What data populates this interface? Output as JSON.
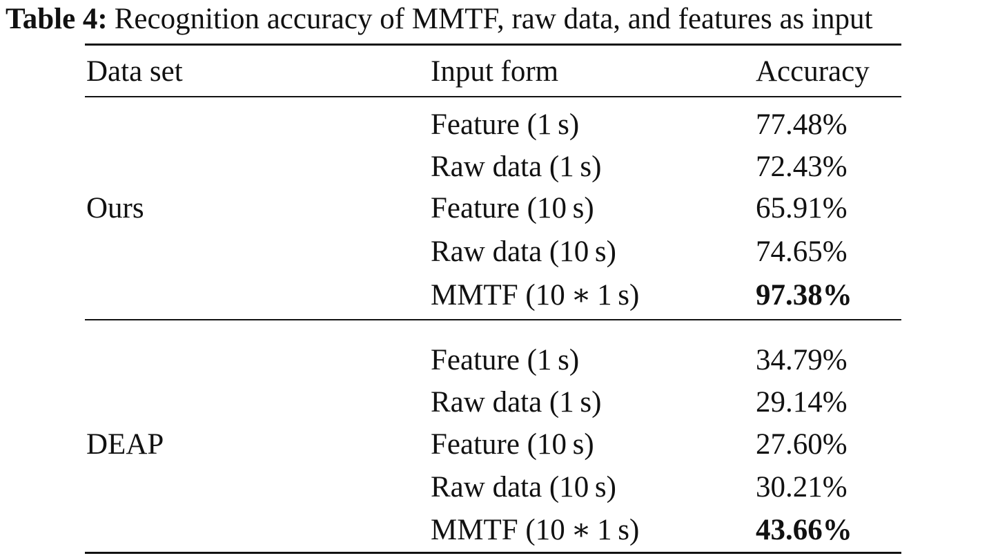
{
  "caption": {
    "label": "Table 4:",
    "text": "Recognition accuracy of MMTF, raw data, and features as input"
  },
  "header": {
    "dataset": "Data set",
    "input": "Input form",
    "accuracy": "Accuracy"
  },
  "groups": [
    {
      "dataset": "Ours",
      "rows": [
        {
          "input": "Feature (1 s)",
          "accuracy": "77.48%",
          "bold": false
        },
        {
          "input": "Raw data (1 s)",
          "accuracy": "72.43%",
          "bold": false
        },
        {
          "input": "Feature (10 s)",
          "accuracy": "65.91%",
          "bold": false
        },
        {
          "input": "Raw data (10 s)",
          "accuracy": "74.65%",
          "bold": false
        },
        {
          "input": "MMTF (10 ∗ 1 s)",
          "accuracy": "97.38%",
          "bold": true
        }
      ]
    },
    {
      "dataset": "DEAP",
      "rows": [
        {
          "input": "Feature (1 s)",
          "accuracy": "34.79%",
          "bold": false
        },
        {
          "input": "Raw data (1 s)",
          "accuracy": "29.14%",
          "bold": false
        },
        {
          "input": "Feature (10 s)",
          "accuracy": "27.60%",
          "bold": false
        },
        {
          "input": "Raw data (10 s)",
          "accuracy": "30.21%",
          "bold": false
        },
        {
          "input": "MMTF (10 ∗ 1 s)",
          "accuracy": "43.66%",
          "bold": true
        }
      ]
    }
  ]
}
